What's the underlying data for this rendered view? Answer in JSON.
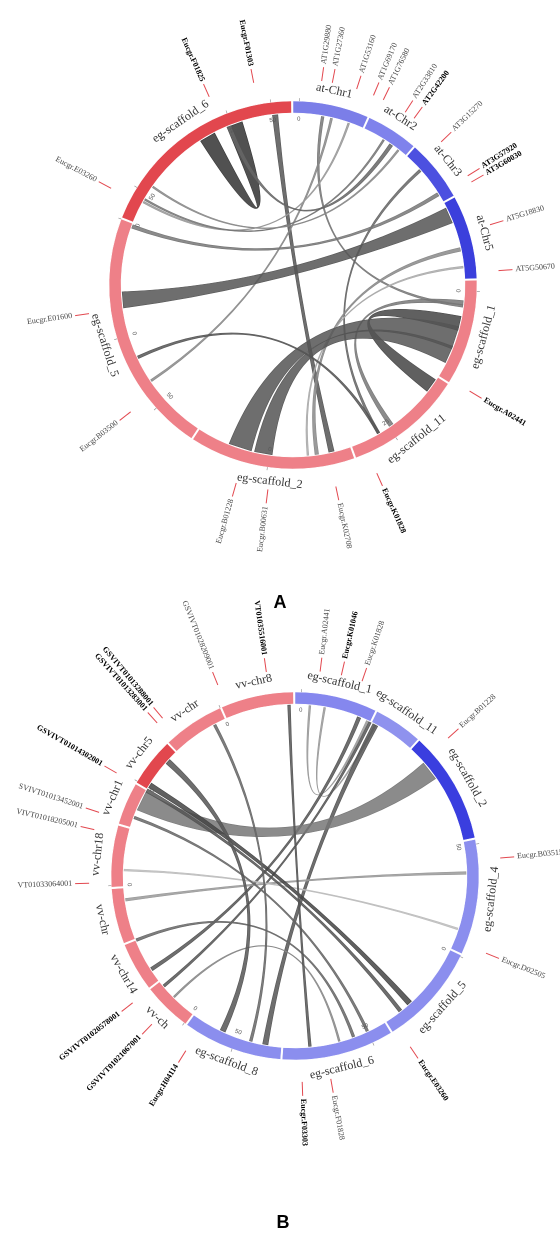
{
  "figure": {
    "panel_a": "A",
    "panel_b": "B"
  },
  "panels": [
    {
      "id": "A",
      "segments": [
        {
          "label": "at-Chr1",
          "color": "#7b7ee8",
          "start": 0,
          "end": 24
        },
        {
          "label": "at-Chr2",
          "color": "#7f82ec",
          "start": 24.5,
          "end": 41
        },
        {
          "label": "at-Chr3",
          "color": "#4c50e0",
          "start": 41.5,
          "end": 61
        },
        {
          "label": "at-Chr5",
          "color": "#3b3fdc",
          "start": 61.5,
          "end": 88
        },
        {
          "label": "eg-scaffold_1",
          "color": "#ee8088",
          "start": 88.5,
          "end": 122
        },
        {
          "label": "eg-scaffold_11",
          "color": "#ee8088",
          "start": 122.5,
          "end": 160
        },
        {
          "label": "eg-scaffold_2",
          "color": "#ee8088",
          "start": 160.5,
          "end": 213
        },
        {
          "label": "eg-scaffold_5",
          "color": "#ee8088",
          "start": 213.5,
          "end": 291
        },
        {
          "label": "eg-scaffold_6",
          "color": "#e2474e",
          "start": 291.5,
          "end": 359.5
        }
      ],
      "ticks": [
        {
          "deg": 353,
          "label": "50"
        },
        {
          "deg": 339,
          "label": "25"
        },
        {
          "deg": 302,
          "label": "50"
        },
        {
          "deg": 291,
          "label": "0"
        },
        {
          "deg": 253,
          "label": "0"
        },
        {
          "deg": 228,
          "label": "50"
        },
        {
          "deg": 188,
          "label": "0"
        },
        {
          "deg": 146,
          "label": "25"
        },
        {
          "deg": 92,
          "label": "0"
        },
        {
          "deg": 2,
          "label": "0"
        }
      ],
      "genes": [
        {
          "label": "Eucgr.F01825",
          "deg": 336,
          "bold": true
        },
        {
          "label": "Eucgr.F01303",
          "deg": 349,
          "bold": true
        },
        {
          "label": "AT1G29880",
          "deg": 8,
          "bold": false
        },
        {
          "label": "AT1G27360",
          "deg": 11,
          "bold": false
        },
        {
          "label": "AT1G53160",
          "deg": 18,
          "bold": false
        },
        {
          "label": "AT1G69170",
          "deg": 23,
          "bold": false
        },
        {
          "label": "AT1G76580",
          "deg": 26,
          "bold": false
        },
        {
          "label": "AT2G33810",
          "deg": 33,
          "bold": false
        },
        {
          "label": "AT2G42200",
          "deg": 36,
          "bold": true
        },
        {
          "label": "AT3G15270",
          "deg": 46,
          "bold": false
        },
        {
          "label": "AT3G57920",
          "deg": 58,
          "bold": true
        },
        {
          "label": "AT3G60030",
          "deg": 60,
          "bold": true
        },
        {
          "label": "AT5G18830",
          "deg": 73,
          "bold": false
        },
        {
          "label": "AT5G50670",
          "deg": 86,
          "bold": false
        },
        {
          "label": "Eucgr.A02441",
          "deg": 121,
          "bold": true
        },
        {
          "label": "Eucgr.K01828",
          "deg": 156,
          "bold": true
        },
        {
          "label": "Eucgr.K02708",
          "deg": 168,
          "bold": false
        },
        {
          "label": "Eucgr.B00631",
          "deg": 187,
          "bold": false
        },
        {
          "label": "Eucgr.B01228",
          "deg": 196,
          "bold": false
        },
        {
          "label": "Eucgr.B03500",
          "deg": 232,
          "bold": false
        },
        {
          "label": "Eucgr.E01600",
          "deg": 262,
          "bold": false
        },
        {
          "label": "Eucgr.E03260",
          "deg": 298,
          "bold": false
        }
      ],
      "links": [
        {
          "a": 340,
          "b": 330,
          "w": 9,
          "c": "#333333"
        },
        {
          "a": 354,
          "b": 167,
          "w": 3,
          "c": "#555555"
        },
        {
          "a": 10,
          "b": 97,
          "w": 1.5,
          "c": "#777777"
        },
        {
          "a": 13,
          "b": 236,
          "w": 1.2,
          "c": "#888888"
        },
        {
          "a": 19,
          "b": 299,
          "w": 1,
          "c": "#999999"
        },
        {
          "a": 32,
          "b": 300,
          "w": 1,
          "c": "#777777"
        },
        {
          "a": 35,
          "b": 338,
          "w": 2,
          "c": "#666666"
        },
        {
          "a": 38,
          "b": 305,
          "w": 1,
          "c": "#888888"
        },
        {
          "a": 48,
          "b": 150,
          "w": 1.5,
          "c": "#666666"
        },
        {
          "a": 58,
          "b": 290,
          "w": 2,
          "c": "#777777"
        },
        {
          "a": 66,
          "b": 265,
          "w": 9,
          "c": "#555555"
        },
        {
          "a": 78,
          "b": 172,
          "w": 2,
          "c": "#888888"
        },
        {
          "a": 84,
          "b": 175,
          "w": 1,
          "c": "#aaaaaa"
        },
        {
          "a": 96,
          "b": 145,
          "w": 2.5,
          "c": "#777777"
        },
        {
          "a": 103,
          "b": 126,
          "w": 8,
          "c": "#444444"
        },
        {
          "a": 108,
          "b": 198,
          "w": 13,
          "c": "#555555"
        },
        {
          "a": 114,
          "b": 190,
          "w": 10,
          "c": "#555555"
        },
        {
          "a": 150,
          "b": 245,
          "w": 1.5,
          "c": "#555555"
        }
      ]
    },
    {
      "id": "B",
      "segments": [
        {
          "label": "eg-scaffold_1",
          "color": "#8587ee",
          "start": 0,
          "end": 26
        },
        {
          "label": "eg-scaffold_11",
          "color": "#8f92ee",
          "start": 26.5,
          "end": 42
        },
        {
          "label": "eg-scaffold_2",
          "color": "#3a3edf",
          "start": 42.5,
          "end": 78
        },
        {
          "label": "eg-scaffold_4",
          "color": "#8b8eee",
          "start": 78.5,
          "end": 115
        },
        {
          "label": "eg-scaffold_5",
          "color": "#8b8eee",
          "start": 115.5,
          "end": 148
        },
        {
          "label": "eg-scaffold_6",
          "color": "#8b8eee",
          "start": 148.5,
          "end": 184
        },
        {
          "label": "eg-scaffold_8",
          "color": "#8b8eee",
          "start": 184.5,
          "end": 216
        },
        {
          "label": "vv-ch",
          "color": "#ee8088",
          "start": 216.5,
          "end": 232
        },
        {
          "label": "vv-chr14",
          "color": "#ee8088",
          "start": 232.5,
          "end": 248
        },
        {
          "label": "vv-chr",
          "color": "#ee8088",
          "start": 248.5,
          "end": 266
        },
        {
          "label": "vv-chr18",
          "color": "#ee8088",
          "start": 266.5,
          "end": 286
        },
        {
          "label": "vv-chr1",
          "color": "#ee8088",
          "start": 286.5,
          "end": 300
        },
        {
          "label": "vv-chr5",
          "color": "#e2474e",
          "start": 300.5,
          "end": 316
        },
        {
          "label": "vv-chr",
          "color": "#ee8088",
          "start": 316.5,
          "end": 336
        },
        {
          "label": "vv-chr8",
          "color": "#ee8088",
          "start": 336.5,
          "end": 359.5
        }
      ],
      "ticks": [
        {
          "deg": 80,
          "label": "50"
        },
        {
          "deg": 116,
          "label": "0"
        },
        {
          "deg": 155,
          "label": "50"
        },
        {
          "deg": 200,
          "label": "50"
        },
        {
          "deg": 217,
          "label": "0"
        },
        {
          "deg": 267,
          "label": "0"
        },
        {
          "deg": 301,
          "label": "0"
        },
        {
          "deg": 336,
          "label": "0"
        },
        {
          "deg": 2,
          "label": "0"
        }
      ],
      "genes": [
        {
          "label": "Eucgr.A02441",
          "deg": 7,
          "bold": false
        },
        {
          "label": "Eucgr.K01046",
          "deg": 13,
          "bold": true
        },
        {
          "label": "Eucgr.K01828",
          "deg": 19,
          "bold": false
        },
        {
          "label": "Eucgr.B01228",
          "deg": 48,
          "bold": false
        },
        {
          "label": "Eucgr.B03515",
          "deg": 85,
          "bold": false
        },
        {
          "label": "Eucgr.D02505",
          "deg": 112,
          "bold": false
        },
        {
          "label": "Eucgr.E03260",
          "deg": 146,
          "bold": true
        },
        {
          "label": "Eucgr.F01828",
          "deg": 170,
          "bold": false
        },
        {
          "label": "Eucgr.F03303",
          "deg": 178,
          "bold": true
        },
        {
          "label": "Eucgr.H04114",
          "deg": 212,
          "bold": true
        },
        {
          "label": "GSVIVT01021067001",
          "deg": 224,
          "bold": true
        },
        {
          "label": "GSVIVT01020578001",
          "deg": 232,
          "bold": true
        },
        {
          "label": "VT01033064001",
          "deg": 268,
          "bold": false
        },
        {
          "label": "VIVT01018205001",
          "deg": 283,
          "bold": false
        },
        {
          "label": "SVIVT01013452001",
          "deg": 288,
          "bold": false
        },
        {
          "label": "GSVIVT01014302001",
          "deg": 300,
          "bold": true
        },
        {
          "label": "GSVIVT01013283001",
          "deg": 318,
          "bold": true
        },
        {
          "label": "GSVIVT01013288001",
          "deg": 320,
          "bold": true
        },
        {
          "label": "GSVIVT01028209001",
          "deg": 338,
          "bold": false
        },
        {
          "label": "VT01035516001",
          "deg": 352,
          "bold": true
        }
      ],
      "links": [
        {
          "a": 5,
          "b": 25,
          "w": 1,
          "c": "#999999"
        },
        {
          "a": 10,
          "b": 28,
          "w": 1,
          "c": "#999999"
        },
        {
          "a": 22,
          "b": 237,
          "w": 2,
          "c": "#555555"
        },
        {
          "a": 26,
          "b": 230,
          "w": 1.5,
          "c": "#555555"
        },
        {
          "a": 28,
          "b": 190,
          "w": 3,
          "c": "#555555"
        },
        {
          "a": 52,
          "b": 296,
          "w": 11,
          "c": "#777777"
        },
        {
          "a": 89,
          "b": 262,
          "w": 1.5,
          "c": "#999999"
        },
        {
          "a": 108,
          "b": 272,
          "w": 1,
          "c": "#bbbbbb"
        },
        {
          "a": 138,
          "b": 302,
          "w": 3,
          "c": "#444444"
        },
        {
          "a": 142,
          "b": 300,
          "w": 2,
          "c": "#555555"
        },
        {
          "a": 155,
          "b": 290,
          "w": 1.5,
          "c": "#666666"
        },
        {
          "a": 160,
          "b": 248,
          "w": 1.5,
          "c": "#666666"
        },
        {
          "a": 165,
          "b": 225,
          "w": 1,
          "c": "#888888"
        },
        {
          "a": 175,
          "b": 358,
          "w": 1.5,
          "c": "#555555"
        },
        {
          "a": 205,
          "b": 312,
          "w": 3,
          "c": "#555555"
        },
        {
          "a": 195,
          "b": 332,
          "w": 1.5,
          "c": "#666666"
        }
      ]
    }
  ]
}
